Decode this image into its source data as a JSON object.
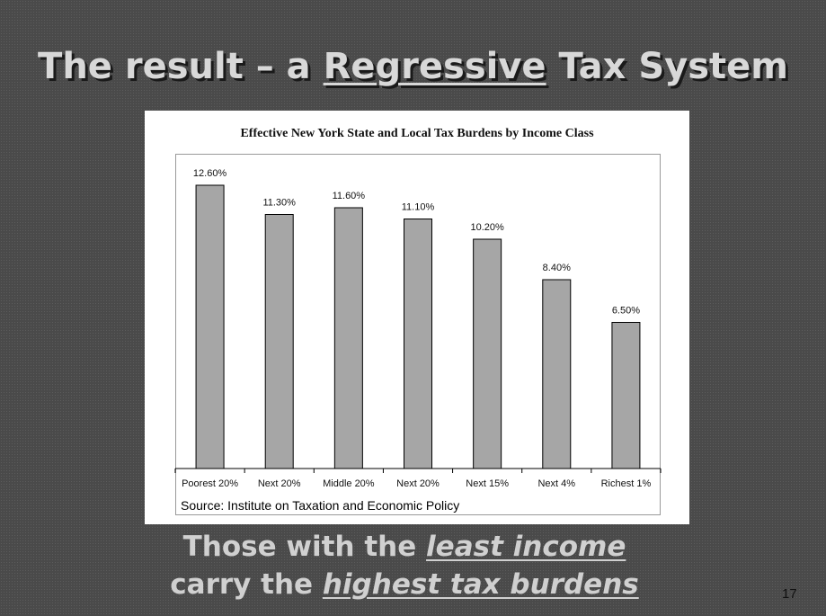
{
  "slide": {
    "title_part1": "The result – a ",
    "title_emphasis": "Regressive",
    "title_part2": " Tax System",
    "subtitle_line1_prefix": "Those with the ",
    "subtitle_line1_emphasis": "least income",
    "subtitle_line2_prefix": "carry the ",
    "subtitle_line2_emphasis": "highest tax burdens",
    "page_number": "17",
    "source": "Source: Institute on Taxation and Economic Policy"
  },
  "colors": {
    "background": "#4a4a4a",
    "title_text": "#d8d8d8",
    "bar_fill": "#a6a6a6",
    "bar_stroke": "#000000"
  },
  "chart_data": {
    "type": "bar",
    "title": "Effective New York State and Local Tax Burdens by Income Class",
    "categories": [
      "Poorest 20%",
      "Next 20%",
      "Middle 20%",
      "Next 20%",
      "Next 15%",
      "Next 4%",
      "Richest 1%"
    ],
    "values": [
      12.6,
      11.3,
      11.6,
      11.1,
      10.2,
      8.4,
      6.5
    ],
    "data_labels": [
      "12.60%",
      "11.30%",
      "11.60%",
      "11.10%",
      "10.20%",
      "8.40%",
      "6.50%"
    ],
    "xlabel": "",
    "ylabel": "",
    "ylim": [
      0,
      14
    ],
    "grid": false,
    "legend": "none"
  }
}
